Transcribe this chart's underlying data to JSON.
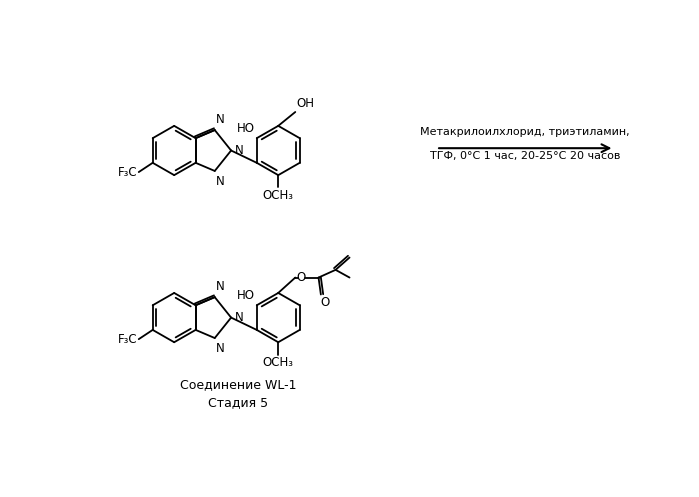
{
  "bg_color": "#ffffff",
  "arrow_text_line1": "Метакрилоилхлорид, триэтиламин,",
  "arrow_text_line2": "ТГФ, 0°C 1 час, 20-25°C 20 часов",
  "label_compound": "Соединение WL-1",
  "label_stage": "Стадия 5",
  "lw": 1.3,
  "font_size_label": 9,
  "font_size_arrow": 8.0,
  "font_size_atom": 8.5,
  "font_size_N": 8.5,
  "ring_r": 32
}
